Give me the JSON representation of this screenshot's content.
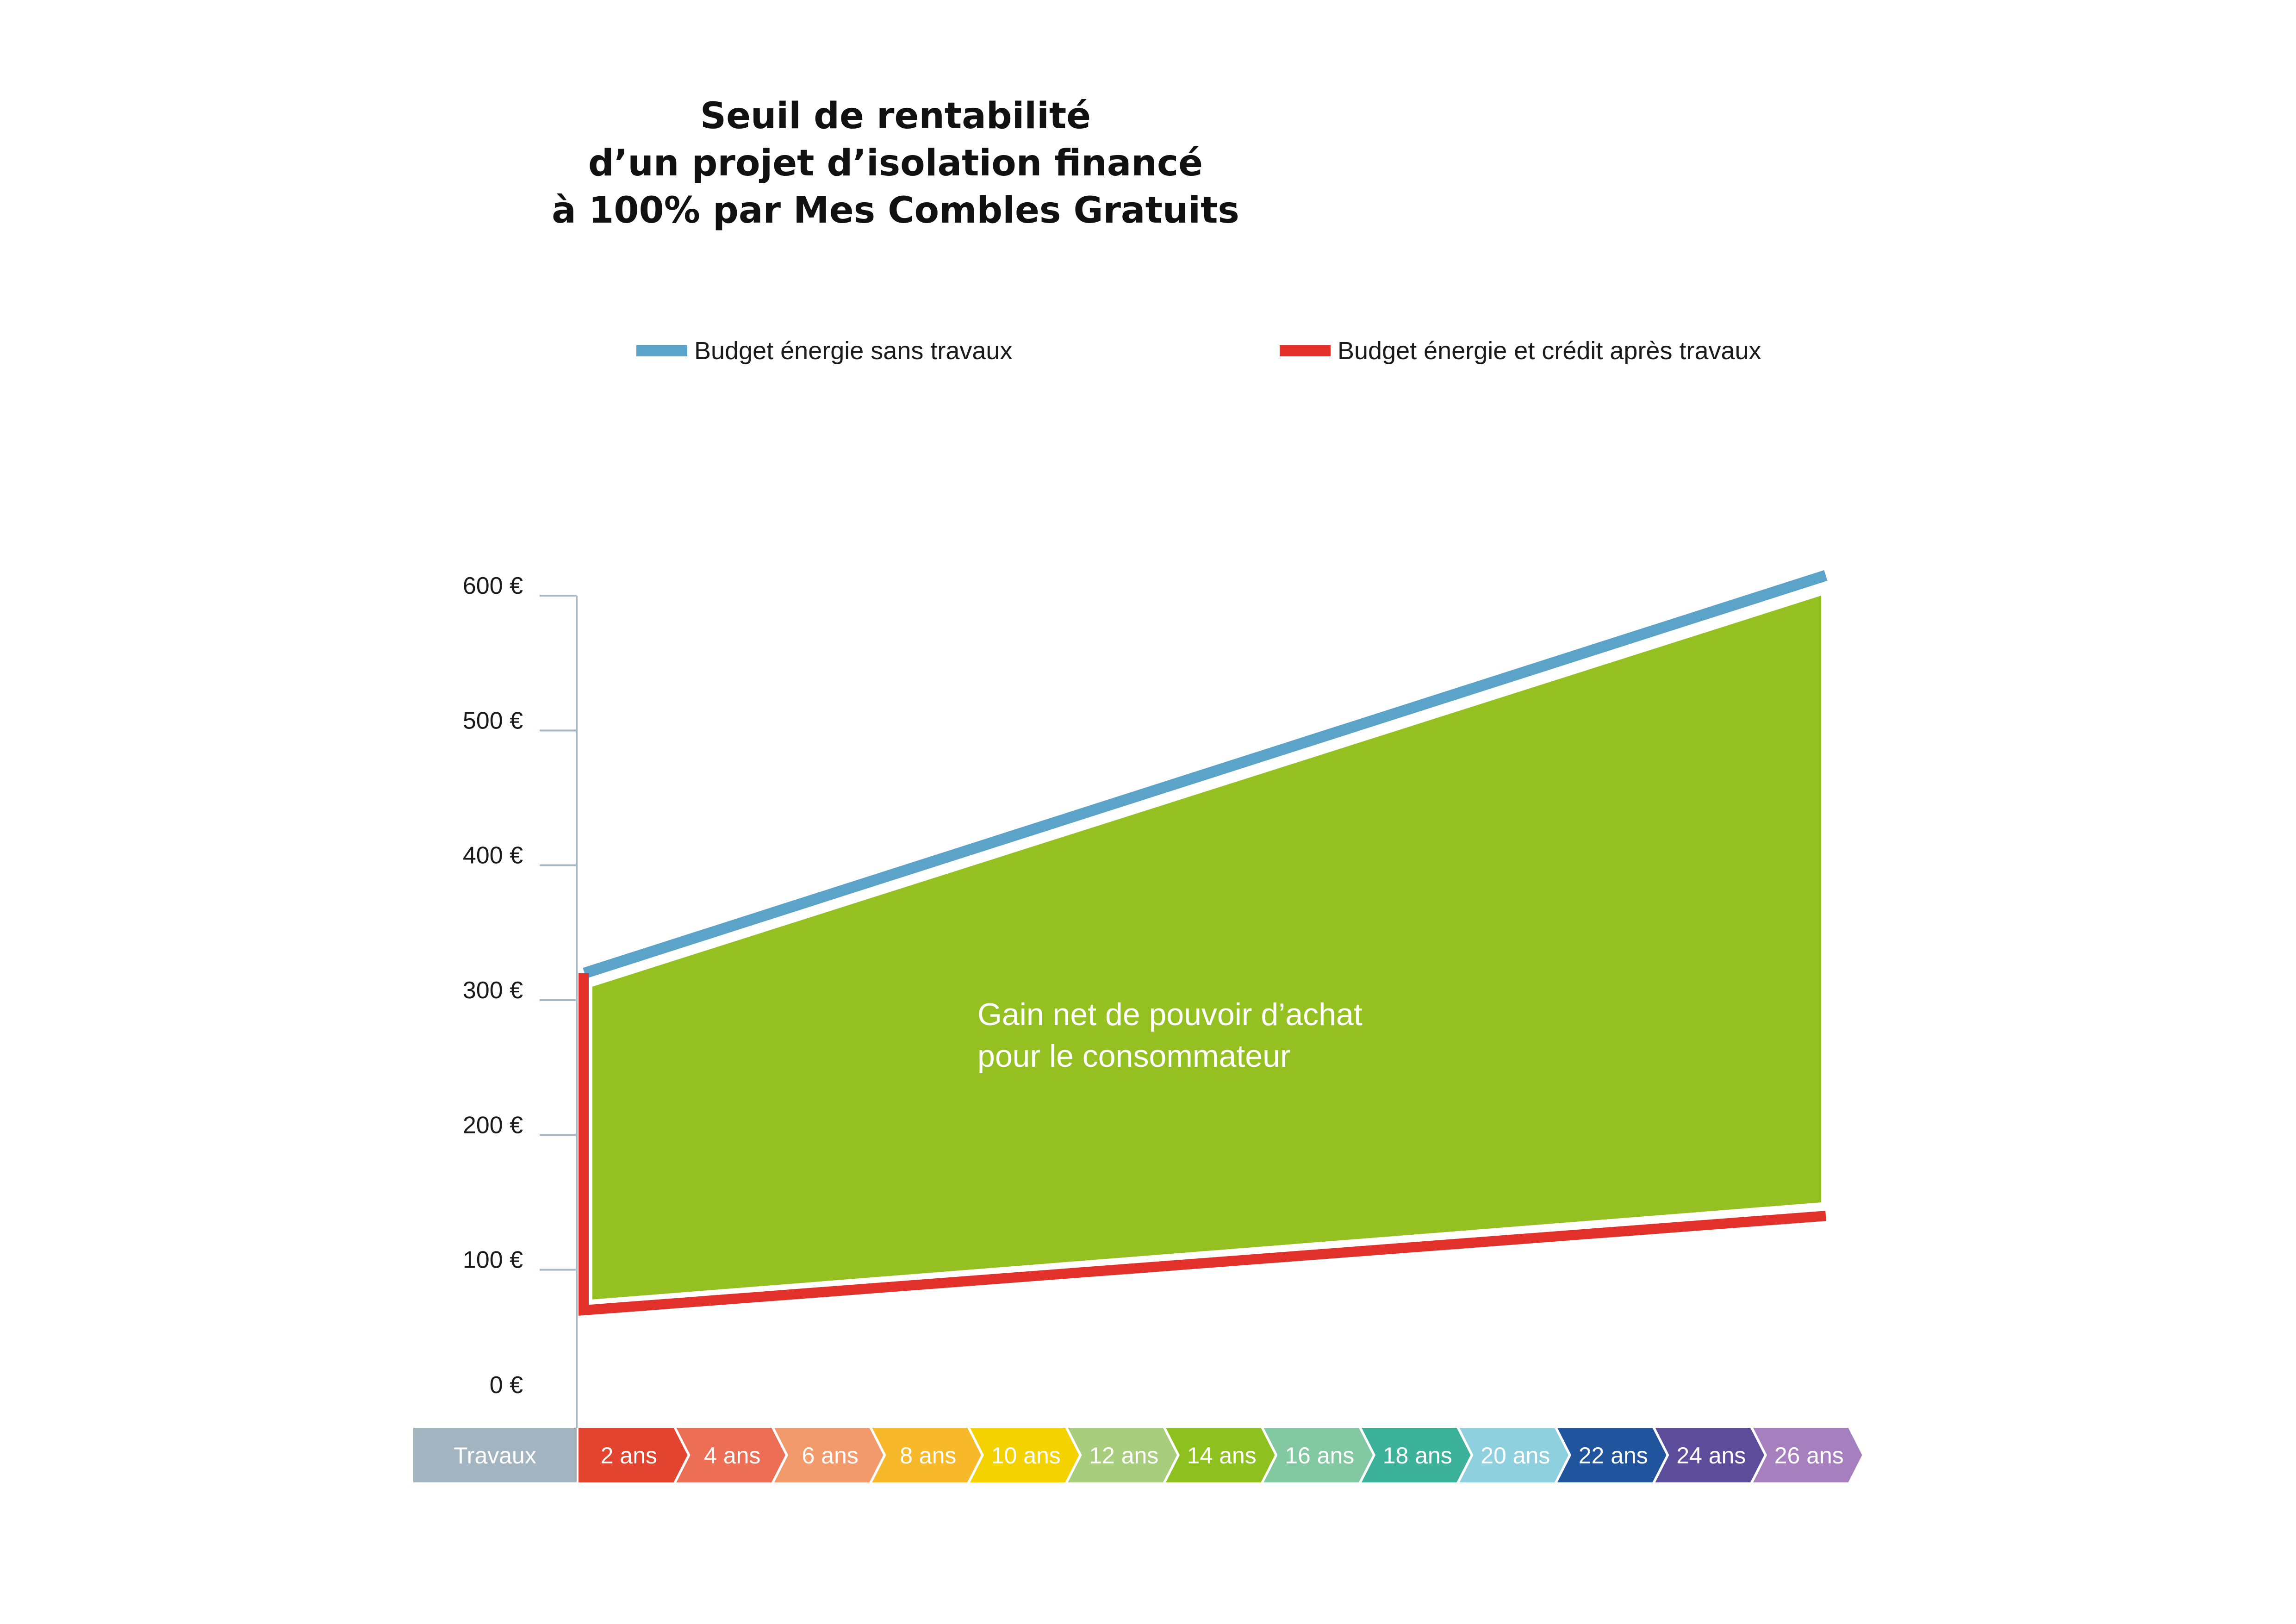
{
  "chart_data": {
    "type": "area",
    "title": "Seuil de rentabilité\nd’un projet d’isolation financé\nà 100% par Mes Combles Gratuits",
    "legend_position": "top",
    "series": [
      {
        "name": "Budget énergie sans travaux",
        "color": "#5ba3c9",
        "x": [
          "Travaux",
          "26 ans"
        ],
        "values": [
          320,
          615
        ]
      },
      {
        "name": "Budget énergie et crédit après travaux",
        "color": "#e2302a",
        "x": [
          "Travaux",
          "Travaux",
          "26 ans"
        ],
        "values": [
          320,
          70,
          140
        ]
      }
    ],
    "area_annotation": {
      "text": "Gain net de pouvoir d’achat\npour le consommateur",
      "color": "#94c121"
    },
    "y_ticks": [
      {
        "value": 600,
        "label": "600 €"
      },
      {
        "value": 500,
        "label": "500 €"
      },
      {
        "value": 400,
        "label": "400 €"
      },
      {
        "value": 300,
        "label": "300 €"
      },
      {
        "value": 200,
        "label": "200 €"
      },
      {
        "value": 100,
        "label": "100 €"
      },
      {
        "value": 0,
        "label": "0 €"
      }
    ],
    "ylim": [
      0,
      600
    ],
    "grid": false,
    "x_start_label": {
      "label": "Travaux",
      "color": "#a2b4bf"
    },
    "x_categories": [
      {
        "label": "2 ans",
        "color": "#e3442f"
      },
      {
        "label": "4 ans",
        "color": "#ec6f55"
      },
      {
        "label": "6 ans",
        "color": "#f39a6c"
      },
      {
        "label": "8 ans",
        "color": "#f7b829"
      },
      {
        "label": "10 ans",
        "color": "#f4d200"
      },
      {
        "label": "12 ans",
        "color": "#a8cd7c"
      },
      {
        "label": "14 ans",
        "color": "#8ec020"
      },
      {
        "label": "16 ans",
        "color": "#82c8a1"
      },
      {
        "label": "18 ans",
        "color": "#3db29a"
      },
      {
        "label": "20 ans",
        "color": "#8fd0de"
      },
      {
        "label": "22 ans",
        "color": "#20549c"
      },
      {
        "label": "24 ans",
        "color": "#5c4d9a"
      },
      {
        "label": "26 ans",
        "color": "#a57fbe"
      }
    ]
  }
}
